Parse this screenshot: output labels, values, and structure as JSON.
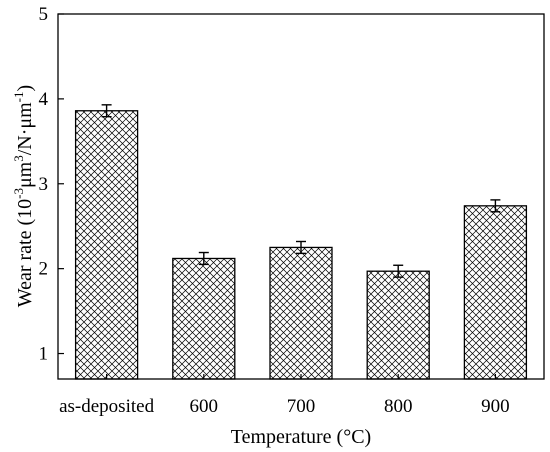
{
  "chart_data": {
    "type": "bar",
    "title": "",
    "categories": [
      "as-deposited",
      "600",
      "700",
      "800",
      "900"
    ],
    "values": [
      3.86,
      2.12,
      2.25,
      1.97,
      2.74
    ],
    "errors": [
      0.07,
      0.07,
      0.07,
      0.07,
      0.07
    ],
    "xlabel": "Temperature (°C)",
    "ylabel": {
      "prefix": "Wear rate (10",
      "exp1": "-3",
      "mid": "μm",
      "exp2": "3",
      "mid2": "/N·μm",
      "exp3": "-1",
      "suffix": ")"
    },
    "ylim": [
      0.7,
      5
    ],
    "yticks": [
      1,
      2,
      3,
      4,
      5
    ],
    "grid": false,
    "bar_fill": "cross-hatch",
    "colors": {
      "bar_stroke": "#000000",
      "hatch": "#000000"
    }
  }
}
